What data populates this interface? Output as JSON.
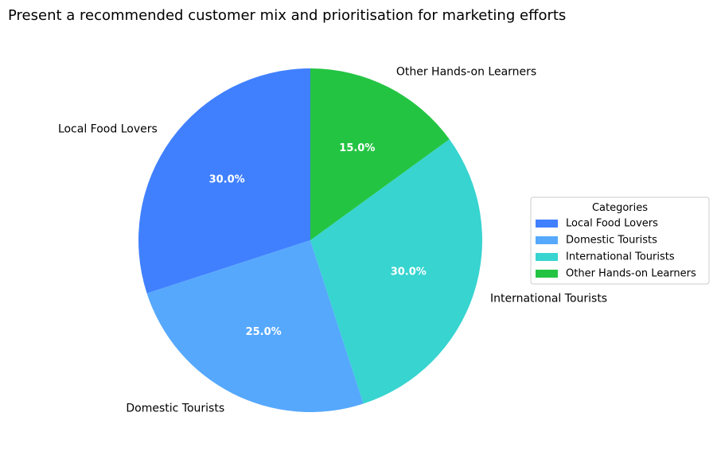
{
  "chart_data": {
    "type": "pie",
    "title": "Present a recommended customer mix and prioritisation for marketing efforts",
    "categories": [
      "Local Food Lovers",
      "Domestic Tourists",
      "International Tourists",
      "Other Hands-on Learners"
    ],
    "values": [
      30.0,
      25.0,
      30.0,
      15.0
    ],
    "percent_labels": [
      "30.0%",
      "25.0%",
      "30.0%",
      "15.0%"
    ],
    "colors": [
      "#4080fe",
      "#56a8fc",
      "#37d4d0",
      "#24c443"
    ],
    "start_angle_deg": 90,
    "direction": "counterclockwise",
    "legend": {
      "title": "Categories",
      "placement": "right",
      "entries": [
        "Local Food Lovers",
        "Domestic Tourists",
        "International Tourists",
        "Other Hands-on Learners"
      ]
    }
  }
}
